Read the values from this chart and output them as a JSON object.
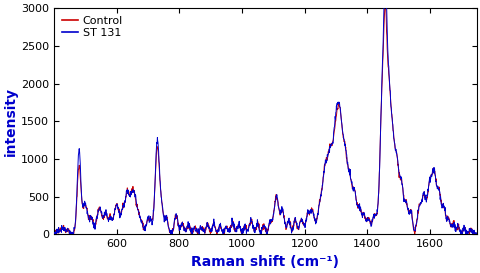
{
  "xlabel": "Raman shift (cm⁻¹)",
  "ylabel": "intensity",
  "xlim": [
    400,
    1750
  ],
  "ylim": [
    0,
    3000
  ],
  "yticks": [
    0,
    500,
    1000,
    1500,
    2000,
    2500,
    3000
  ],
  "xticks": [
    600,
    800,
    1000,
    1200,
    1400,
    1600
  ],
  "control_color": "#cc0000",
  "st131_color": "#0000cc",
  "legend_labels": [
    "Control",
    "ST 131"
  ],
  "xlabel_color": "#0000cc",
  "ylabel_color": "#0000cc",
  "linewidth": 0.7,
  "figsize": [
    4.81,
    2.73
  ],
  "dpi": 100
}
